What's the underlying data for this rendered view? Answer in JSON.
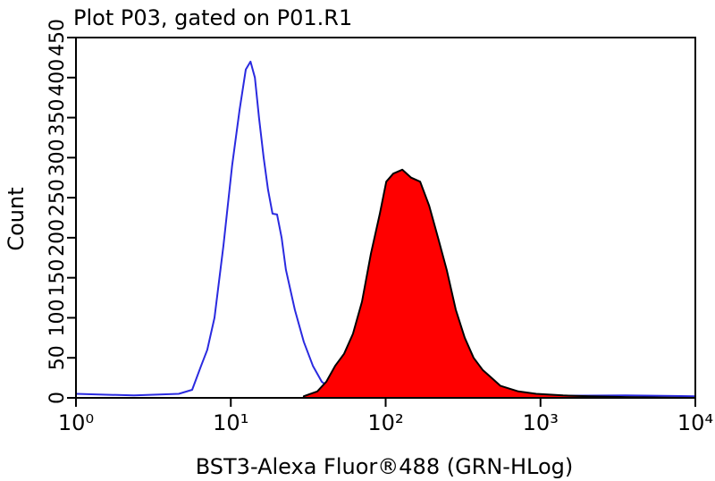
{
  "chart_data": {
    "type": "histogram-overlay",
    "title": "Plot P03, gated on P01.R1",
    "x_label": "BST3-Alexa Fluor®488 (GRN-HLog)",
    "y_label": "Count",
    "xscale": "log",
    "xlim": [
      1,
      10000
    ],
    "ylim": [
      0,
      450
    ],
    "xticks": [
      {
        "value": 1,
        "label": "10⁰"
      },
      {
        "value": 10,
        "label": "10¹"
      },
      {
        "value": 100,
        "label": "10²"
      },
      {
        "value": 1000,
        "label": "10³"
      },
      {
        "value": 10000,
        "label": "10⁴"
      }
    ],
    "yticks": [
      0,
      50,
      100,
      150,
      200,
      250,
      300,
      350,
      400,
      450
    ],
    "series": [
      {
        "color": "#2a2ae0",
        "fill": false,
        "x": [
          1,
          2.37,
          4.61,
          5.63,
          6.43,
          7.05,
          7.85,
          8.96,
          10.2,
          11.4,
          12.5,
          13.4,
          14.3,
          15.2,
          16.3,
          17.4,
          18.6,
          19.9,
          21.3,
          22.7,
          25.9,
          29.6,
          33.9,
          38.7,
          44.2,
          57.6,
          85.8,
          248,
          3548,
          10000
        ],
        "values": [
          5,
          3,
          5,
          10,
          40,
          60,
          100,
          190,
          290,
          360,
          410,
          420,
          400,
          350,
          300,
          260,
          230,
          229,
          200,
          160,
          110,
          70,
          40,
          20,
          12,
          5,
          2,
          2,
          3,
          2
        ]
      },
      {
        "color": "#ff0000",
        "fill": true,
        "x": [
          29.6,
          36.2,
          41.3,
          47.2,
          53.9,
          61.5,
          70.3,
          80.3,
          91.7,
          101,
          112,
          128,
          146,
          167,
          191,
          218,
          248,
          284,
          324,
          370,
          423,
          483,
          552,
          720,
          939,
          1400,
          2084,
          3548,
          10000
        ],
        "values": [
          2,
          8,
          20,
          40,
          55,
          80,
          120,
          180,
          230,
          270,
          280,
          285,
          275,
          270,
          240,
          200,
          160,
          110,
          75,
          50,
          35,
          25,
          15,
          8,
          5,
          3,
          2,
          1,
          0
        ]
      }
    ]
  }
}
